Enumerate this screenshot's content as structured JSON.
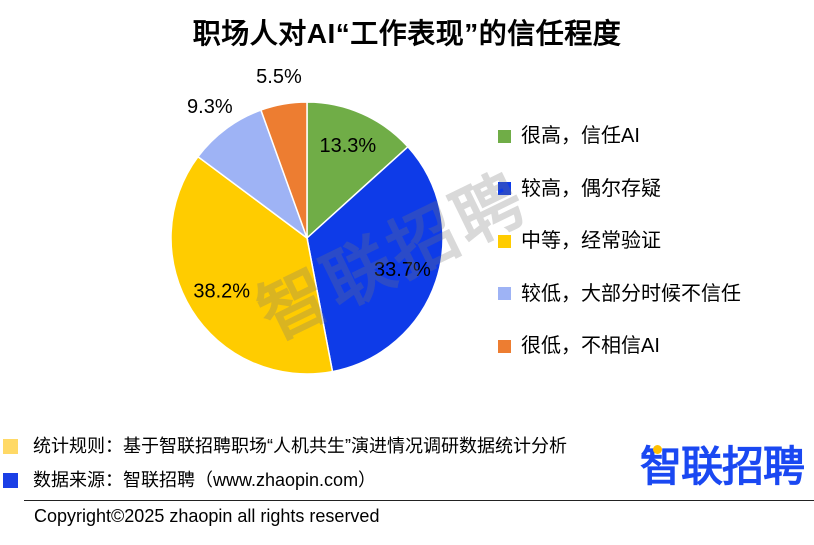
{
  "chart_data": {
    "type": "pie",
    "title": "职场人对AI“工作表现”的信任程度",
    "categories": [
      "很高，信任AI",
      "较高，偶尔存疑",
      "中等，经常验证",
      "较低，大部分时候不信任",
      "很低，不相信AI"
    ],
    "values": [
      13.3,
      33.7,
      38.2,
      9.3,
      5.5
    ],
    "data_labels": [
      "13.3%",
      "33.7%",
      "38.2%",
      "9.3%",
      "5.5%"
    ],
    "colors": [
      "#70AD47",
      "#0E3BE8",
      "#FFCC00",
      "#9EB3F5",
      "#ED7D31"
    ],
    "legend_position": "right"
  },
  "watermark": {
    "text": "智联招聘"
  },
  "notes": [
    {
      "text": "统计规则：基于智联招聘职场“人机共生”演进情况调研数据统计分析",
      "swatch_color": "#FFD966"
    },
    {
      "text": "数据来源：智联招聘（www.zhaopin.com）",
      "swatch_color": "#1A3FE6"
    }
  ],
  "brand_logo": {
    "text": "智联招聘",
    "color": "#1A48F2",
    "accent_color": "#FFC000"
  },
  "footer": {
    "copyright": "Copyright©2025 zhaopin all rights reserved"
  }
}
